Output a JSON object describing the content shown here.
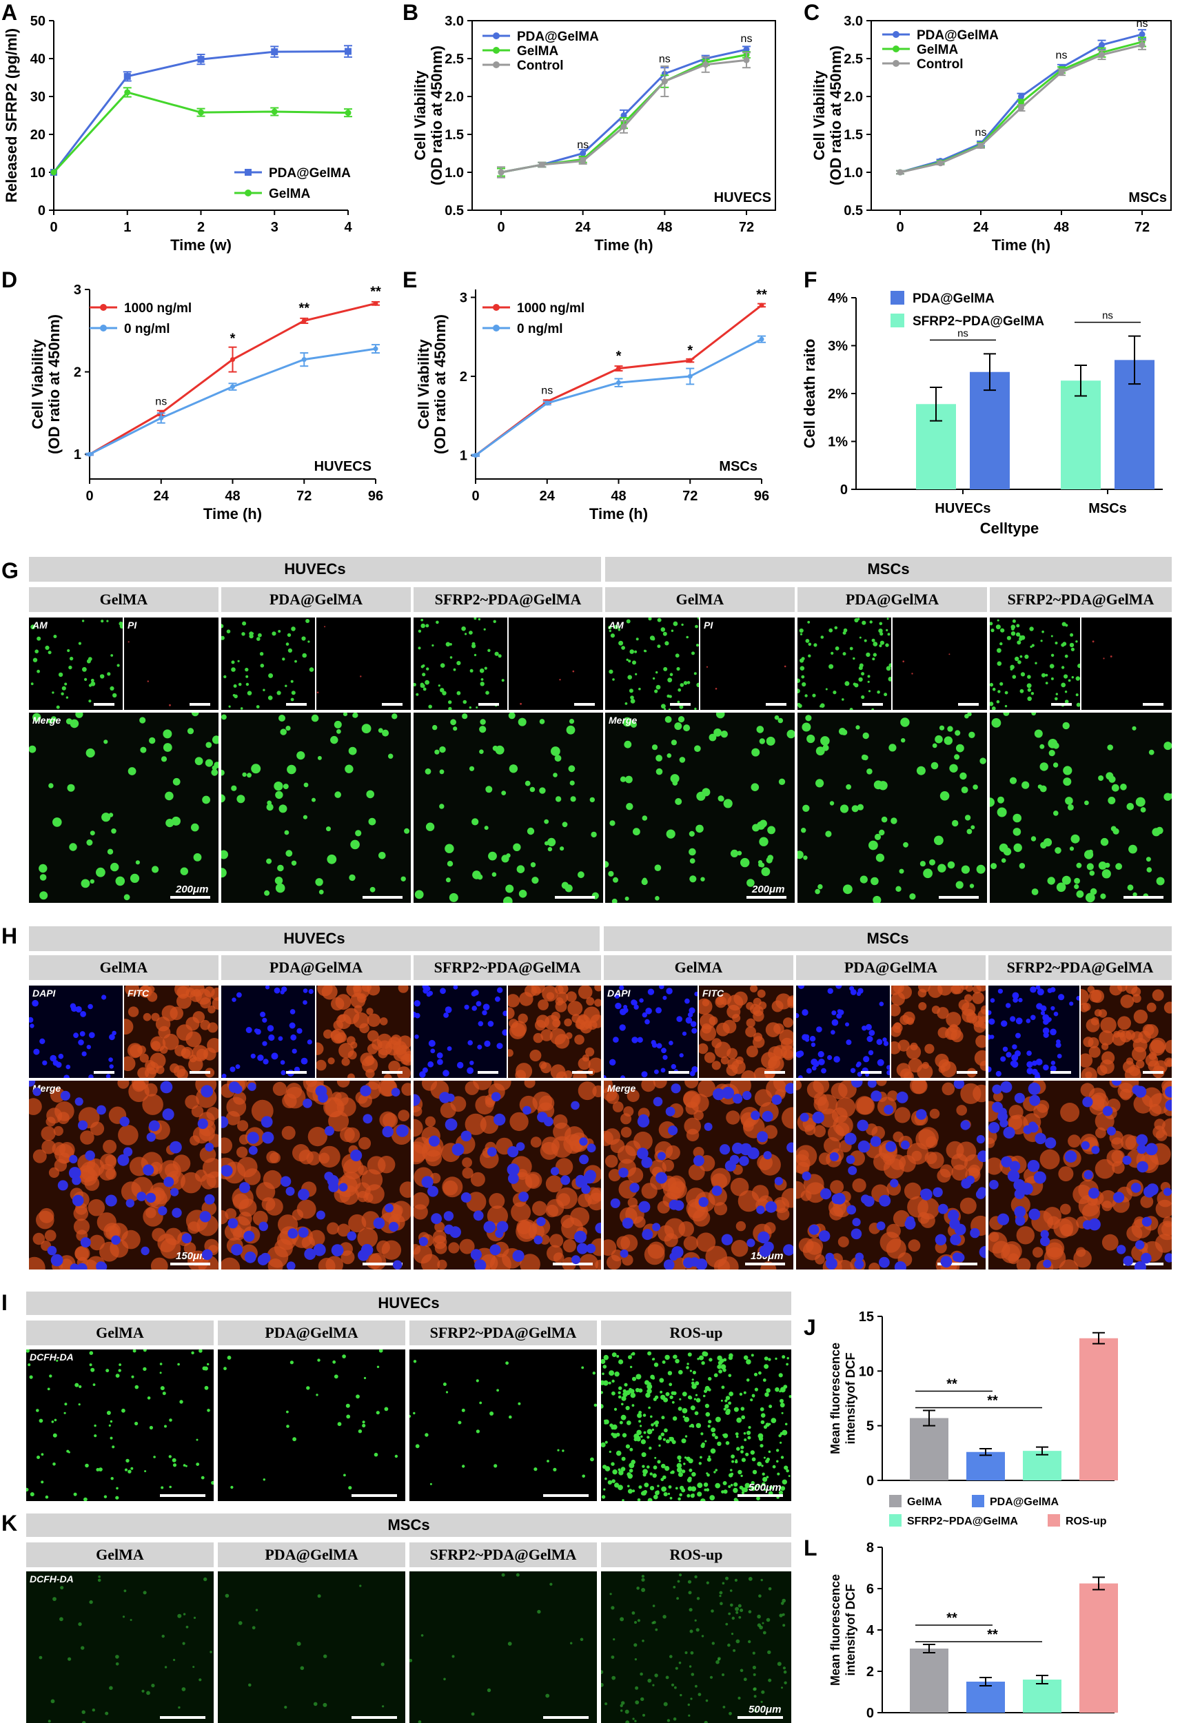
{
  "panels": {
    "A": "A",
    "B": "B",
    "C": "C",
    "D": "D",
    "E": "E",
    "F": "F",
    "G": "G",
    "H": "H",
    "I": "I",
    "J": "J",
    "K": "K",
    "L": "L"
  },
  "chart_data": [
    {
      "id": "A",
      "type": "line",
      "xlabel": "Time (w)",
      "ylabel": "Released SFRP2 (pg/ml)",
      "x": [
        0,
        1,
        2,
        3,
        4
      ],
      "xticks": [
        "0",
        "1",
        "2",
        "3",
        "4"
      ],
      "ylim": [
        0,
        50
      ],
      "yticks": [
        0,
        10,
        20,
        30,
        40,
        50
      ],
      "legend_pos": "bottom-right",
      "annotation": "",
      "series": [
        {
          "name": "PDA@GelMA",
          "color": "#4a6fdb",
          "marker": "square",
          "values": [
            10,
            35.3,
            39.8,
            41.8,
            41.9
          ],
          "err": [
            0,
            1.2,
            1.3,
            1.4,
            1.5
          ]
        },
        {
          "name": "GelMA",
          "color": "#44d62c",
          "marker": "circle",
          "values": [
            10,
            31.1,
            25.8,
            26.0,
            25.7
          ],
          "err": [
            0,
            1.2,
            1.0,
            1.0,
            1.0
          ]
        }
      ]
    },
    {
      "id": "B",
      "type": "line",
      "xlabel": "Time (h)",
      "ylabel": "Cell Viability",
      "ylabel2": "(OD ratio at 450nm)",
      "x": [
        0,
        12,
        24,
        36,
        48,
        60,
        72
      ],
      "xticks": [
        "0",
        "24",
        "48",
        "72"
      ],
      "xtickvals": [
        0,
        24,
        48,
        72
      ],
      "ylim": [
        0.5,
        3.0
      ],
      "yticks": [
        "0.5",
        "1.0",
        "1.5",
        "2.0",
        "2.5",
        "3.0"
      ],
      "legend_pos": "top-left",
      "annotation": "HUVECS",
      "sig": [
        {
          "x": 24,
          "y": 1.32,
          "t": "ns"
        },
        {
          "x": 48,
          "y": 2.45,
          "t": "ns"
        },
        {
          "x": 72,
          "y": 2.72,
          "t": "ns"
        }
      ],
      "series": [
        {
          "name": "PDA@GelMA",
          "color": "#4a6fdb",
          "values": [
            1.0,
            1.1,
            1.25,
            1.75,
            2.3,
            2.5,
            2.62
          ],
          "err": [
            0.05,
            0.03,
            0.05,
            0.07,
            0.08,
            0.04,
            0.04
          ]
        },
        {
          "name": "GelMA",
          "color": "#44d62c",
          "values": [
            1.0,
            1.1,
            1.17,
            1.65,
            2.2,
            2.45,
            2.55
          ],
          "err": [
            0.05,
            0.03,
            0.04,
            0.07,
            0.08,
            0.04,
            0.04
          ]
        },
        {
          "name": "Control",
          "color": "#999999",
          "values": [
            1.0,
            1.1,
            1.15,
            1.6,
            2.2,
            2.42,
            2.48
          ],
          "err": [
            0.07,
            0.03,
            0.04,
            0.08,
            0.2,
            0.1,
            0.1
          ]
        }
      ]
    },
    {
      "id": "C",
      "type": "line",
      "xlabel": "Time (h)",
      "ylabel": "Cell Viability",
      "ylabel2": "(OD ratio at 450nm)",
      "x": [
        0,
        12,
        24,
        36,
        48,
        60,
        72
      ],
      "xticks": [
        "0",
        "24",
        "48",
        "72"
      ],
      "xtickvals": [
        0,
        24,
        48,
        72
      ],
      "ylim": [
        0.5,
        3.0
      ],
      "yticks": [
        "0.5",
        "1.0",
        "1.5",
        "2.0",
        "2.5",
        "3.0"
      ],
      "legend_pos": "top-left",
      "annotation": "MSCs",
      "sig": [
        {
          "x": 24,
          "y": 1.48,
          "t": "ns"
        },
        {
          "x": 48,
          "y": 2.5,
          "t": "ns"
        },
        {
          "x": 72,
          "y": 2.92,
          "t": "ns"
        }
      ],
      "series": [
        {
          "name": "PDA@GelMA",
          "color": "#4a6fdb",
          "values": [
            1.0,
            1.15,
            1.38,
            2.0,
            2.38,
            2.68,
            2.82
          ],
          "err": [
            0.02,
            0.02,
            0.03,
            0.04,
            0.04,
            0.06,
            0.06
          ]
        },
        {
          "name": "GelMA",
          "color": "#44d62c",
          "values": [
            1.0,
            1.13,
            1.36,
            1.92,
            2.35,
            2.58,
            2.72
          ],
          "err": [
            0.02,
            0.02,
            0.03,
            0.04,
            0.04,
            0.06,
            0.06
          ]
        },
        {
          "name": "Control",
          "color": "#999999",
          "values": [
            1.0,
            1.12,
            1.35,
            1.85,
            2.32,
            2.55,
            2.68
          ],
          "err": [
            0.02,
            0.02,
            0.03,
            0.04,
            0.04,
            0.06,
            0.06
          ]
        }
      ]
    },
    {
      "id": "D",
      "type": "line",
      "xlabel": "Time (h)",
      "ylabel": "Cell Viability",
      "ylabel2": "(OD ratio at 450nm)",
      "x": [
        0,
        24,
        48,
        72,
        96
      ],
      "xticks": [
        "0",
        "24",
        "48",
        "72",
        "96"
      ],
      "xtickvals": [
        0,
        24,
        48,
        72,
        96
      ],
      "ylim": [
        0.7,
        3.0
      ],
      "yticks": [
        "1",
        "2",
        "3"
      ],
      "ytickvals": [
        1,
        2,
        3
      ],
      "legend_pos": "top-left",
      "annotation": "HUVECS",
      "sig": [
        {
          "x": 24,
          "y": 1.6,
          "t": "ns"
        },
        {
          "x": 48,
          "y": 2.35,
          "t": "*"
        },
        {
          "x": 72,
          "y": 2.72,
          "t": "**"
        },
        {
          "x": 96,
          "y": 2.92,
          "t": "**"
        }
      ],
      "series": [
        {
          "name": "1000 ng/ml",
          "color": "#e8322d",
          "values": [
            1.0,
            1.5,
            2.15,
            2.62,
            2.83
          ],
          "err": [
            0.01,
            0.03,
            0.15,
            0.03,
            0.02
          ]
        },
        {
          "name": "0 ng/ml",
          "color": "#5aa0ea",
          "values": [
            1.0,
            1.44,
            1.82,
            2.15,
            2.28
          ],
          "err": [
            0.01,
            0.06,
            0.04,
            0.08,
            0.05
          ]
        }
      ]
    },
    {
      "id": "E",
      "type": "line",
      "xlabel": "Time (h)",
      "ylabel": "Cell Viability",
      "ylabel2": "(OD ratio at 450nm)",
      "x": [
        0,
        24,
        48,
        72,
        96
      ],
      "xticks": [
        "0",
        "24",
        "48",
        "72",
        "96"
      ],
      "xtickvals": [
        0,
        24,
        48,
        72,
        96
      ],
      "ylim": [
        0.7,
        3.1
      ],
      "yticks": [
        "1",
        "2",
        "3"
      ],
      "ytickvals": [
        1,
        2,
        3
      ],
      "legend_pos": "top-left",
      "annotation": "MSCs",
      "sig": [
        {
          "x": 24,
          "y": 1.78,
          "t": "ns"
        },
        {
          "x": 48,
          "y": 2.2,
          "t": "*"
        },
        {
          "x": 72,
          "y": 2.27,
          "t": "*"
        },
        {
          "x": 96,
          "y": 2.98,
          "t": "**"
        }
      ],
      "series": [
        {
          "name": "1000 ng/ml",
          "color": "#e8322d",
          "values": [
            1.0,
            1.68,
            2.1,
            2.2,
            2.9
          ],
          "err": [
            0.01,
            0.02,
            0.03,
            0.02,
            0.02
          ]
        },
        {
          "name": "0 ng/ml",
          "color": "#5aa0ea",
          "values": [
            1.0,
            1.66,
            1.92,
            2.0,
            2.47
          ],
          "err": [
            0.01,
            0.02,
            0.05,
            0.1,
            0.04
          ]
        }
      ]
    },
    {
      "id": "F",
      "type": "bar",
      "xlabel": "Celltype",
      "ylabel": "Cell death raito",
      "categories": [
        "HUVECs",
        "MSCs"
      ],
      "ylim": [
        0,
        4
      ],
      "yticks": [
        "0",
        "1%",
        "2%",
        "3%",
        "4%"
      ],
      "ytickvals": [
        0,
        1,
        2,
        3,
        4
      ],
      "legend_pos": "top-left",
      "sig": [
        {
          "cat": 0,
          "t": "ns"
        },
        {
          "cat": 1,
          "t": "ns"
        }
      ],
      "series": [
        {
          "name": "SFRP2~PDA@GelMA",
          "color": "#7df5c8",
          "values": [
            1.78,
            2.27
          ],
          "err": [
            0.35,
            0.32
          ]
        },
        {
          "name": "PDA@GelMA",
          "color": "#4f7ae0",
          "values": [
            2.45,
            2.7
          ],
          "err": [
            0.38,
            0.5
          ]
        }
      ]
    },
    {
      "id": "J",
      "type": "bar",
      "ylabel": "Mean fluorescence",
      "ylabel2": "intensityof DCF",
      "categories": [
        "GelMA",
        "PDA@GelMA",
        "SFRP2~PDA@GelMA",
        "ROS-up"
      ],
      "ylim": [
        0,
        15
      ],
      "yticks": [
        "0",
        "5",
        "10",
        "15"
      ],
      "ytickvals": [
        0,
        5,
        10,
        15
      ],
      "legend_pos": "bottom",
      "sig": [
        {
          "from": 0,
          "to": 1,
          "t": "**"
        },
        {
          "from": 0,
          "to": 2,
          "t": "**"
        }
      ],
      "colors": [
        "#a3a3a8",
        "#5585e8",
        "#7df5c8",
        "#f29b9b"
      ],
      "values": [
        5.7,
        2.6,
        2.7,
        13.0
      ],
      "err": [
        0.7,
        0.3,
        0.35,
        0.5
      ]
    },
    {
      "id": "L",
      "type": "bar",
      "ylabel": "Mean fluorescence",
      "ylabel2": "intensityof DCF",
      "categories": [
        "GelMA",
        "PDA@GelMA",
        "SFRP2~PDA@GelMA",
        "ROS-up"
      ],
      "ylim": [
        0,
        8
      ],
      "yticks": [
        "0",
        "2",
        "4",
        "6",
        "8"
      ],
      "ytickvals": [
        0,
        2,
        4,
        6,
        8
      ],
      "sig": [
        {
          "from": 0,
          "to": 1,
          "t": "**"
        },
        {
          "from": 0,
          "to": 2,
          "t": "**"
        }
      ],
      "colors": [
        "#a3a3a8",
        "#5585e8",
        "#7df5c8",
        "#f29b9b"
      ],
      "values": [
        3.1,
        1.5,
        1.6,
        6.25
      ],
      "err": [
        0.2,
        0.2,
        0.2,
        0.3
      ]
    }
  ],
  "G": {
    "huvecs": "HUVECs",
    "mscs": "MSCs",
    "groups": [
      "GelMA",
      "PDA@GelMA",
      "SFRP2~PDA@GelMA"
    ],
    "am": "AM",
    "pi": "PI",
    "merge": "Merge",
    "scale": "200μm",
    "color_a": "#3dd63d",
    "color_b": "#3a0a0a"
  },
  "H": {
    "huvecs": "HUVECs",
    "mscs": "MSCs",
    "groups": [
      "GelMA",
      "PDA@GelMA",
      "SFRP2~PDA@GelMA"
    ],
    "dapi": "DAPI",
    "fitc": "FITC",
    "merge": "Merge",
    "scale": "150μm"
  },
  "I": {
    "title": "HUVECs",
    "groups": [
      "GelMA",
      "PDA@GelMA",
      "SFRP2~PDA@GelMA",
      "ROS-up"
    ],
    "dcfh": "DCFH-DA",
    "scale": "500μm"
  },
  "K": {
    "title": "MSCs",
    "groups": [
      "GelMA",
      "PDA@GelMA",
      "SFRP2~PDA@GelMA",
      "ROS-up"
    ],
    "dcfh": "DCFH-DA",
    "scale": "500μm"
  }
}
